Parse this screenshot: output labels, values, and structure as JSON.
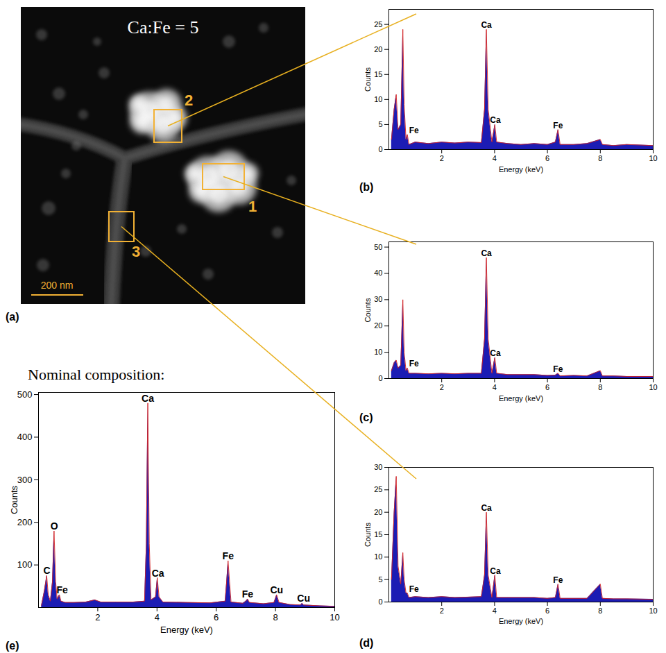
{
  "chart_data": [
    {
      "type": "area",
      "panel_label": "(b)",
      "xlabel": "Energy (keV)",
      "ylabel": "Counts",
      "color": "#1c1cb4",
      "xlim": [
        0,
        10
      ],
      "xticks": [
        2,
        4,
        6,
        8,
        10
      ],
      "ylim": [
        0,
        28
      ],
      "yticks": [
        0,
        5,
        10,
        15,
        20,
        25
      ],
      "x": [
        0.1,
        0.2,
        0.28,
        0.35,
        0.45,
        0.53,
        0.58,
        0.65,
        0.7,
        0.76,
        1.0,
        1.5,
        2.0,
        2.5,
        3.0,
        3.5,
        3.62,
        3.69,
        3.76,
        3.9,
        4.01,
        4.08,
        4.5,
        5.0,
        5.5,
        6.0,
        6.3,
        6.4,
        6.48,
        7.0,
        7.5,
        8.0,
        8.08,
        8.5,
        9.0,
        10
      ],
      "values": [
        2,
        8,
        11,
        4,
        5,
        24,
        9,
        2,
        3,
        1,
        1.5,
        1.2,
        1.5,
        1.3,
        1.5,
        1.4,
        8,
        24,
        8,
        1.5,
        5,
        1.5,
        1.2,
        1,
        1.2,
        1,
        1.5,
        4,
        1,
        1,
        1.2,
        2,
        1,
        0.8,
        1,
        0.8
      ],
      "annotations": [
        {
          "text": "Fe",
          "x": 0.95,
          "y": 3
        },
        {
          "text": "Ca",
          "x": 3.69,
          "y": 24
        },
        {
          "text": "Ca",
          "x": 4.03,
          "y": 5
        },
        {
          "text": "Fe",
          "x": 6.4,
          "y": 4
        }
      ]
    },
    {
      "type": "area",
      "panel_label": "(c)",
      "xlabel": "Energy (keV)",
      "ylabel": "Counts",
      "color": "#1c1cb4",
      "xlim": [
        0,
        10
      ],
      "xticks": [
        2,
        4,
        6,
        8,
        10
      ],
      "ylim": [
        0,
        52
      ],
      "yticks": [
        0,
        10,
        20,
        30,
        40,
        50
      ],
      "x": [
        0.1,
        0.2,
        0.28,
        0.35,
        0.45,
        0.53,
        0.58,
        0.65,
        0.7,
        0.76,
        1.0,
        1.5,
        2.0,
        2.5,
        3.0,
        3.5,
        3.62,
        3.69,
        3.76,
        3.9,
        4.01,
        4.08,
        4.5,
        5.0,
        5.5,
        6.0,
        6.3,
        6.4,
        6.48,
        7.0,
        7.5,
        8.0,
        8.08,
        8.5,
        9.0,
        10
      ],
      "values": [
        3,
        6,
        7,
        4,
        5,
        30,
        10,
        3,
        4,
        2,
        2,
        1.8,
        2,
        1.8,
        2,
        2,
        15,
        46,
        15,
        2,
        8,
        2,
        1.5,
        1.5,
        1.5,
        1.2,
        1.3,
        2,
        1,
        1.2,
        1,
        3,
        1,
        1,
        0.8,
        0.8
      ],
      "annotations": [
        {
          "text": "Fe",
          "x": 0.95,
          "y": 4
        },
        {
          "text": "Ca",
          "x": 3.69,
          "y": 46
        },
        {
          "text": "Ca",
          "x": 4.03,
          "y": 8
        },
        {
          "text": "Fe",
          "x": 6.4,
          "y": 2
        }
      ]
    },
    {
      "type": "area",
      "panel_label": "(d)",
      "xlabel": "Energy (keV)",
      "ylabel": "Counts",
      "color": "#1c1cb4",
      "xlim": [
        0,
        10
      ],
      "xticks": [
        2,
        4,
        6,
        8,
        10
      ],
      "ylim": [
        0,
        30
      ],
      "yticks": [
        0,
        5,
        10,
        15,
        20,
        25,
        30
      ],
      "x": [
        0.1,
        0.2,
        0.28,
        0.35,
        0.45,
        0.53,
        0.58,
        0.65,
        0.7,
        0.76,
        1.0,
        1.5,
        2.0,
        2.5,
        3.0,
        3.5,
        3.62,
        3.69,
        3.76,
        3.9,
        4.01,
        4.08,
        4.5,
        5.0,
        5.5,
        6.0,
        6.3,
        6.4,
        6.48,
        7.0,
        7.5,
        8.0,
        8.08,
        8.5,
        9.0,
        10
      ],
      "values": [
        5,
        20,
        28,
        8,
        4,
        11,
        5,
        2,
        2,
        1,
        1.2,
        1,
        1.2,
        1,
        1.1,
        1.2,
        6,
        20,
        6,
        1,
        6,
        1,
        1,
        1,
        1,
        0.8,
        1,
        4,
        0.8,
        0.8,
        0.8,
        4,
        0.8,
        0.7,
        0.7,
        0.6
      ],
      "annotations": [
        {
          "text": "Fe",
          "x": 0.95,
          "y": 2
        },
        {
          "text": "Ca",
          "x": 3.69,
          "y": 20
        },
        {
          "text": "Ca",
          "x": 4.03,
          "y": 6
        },
        {
          "text": "Fe",
          "x": 6.4,
          "y": 4
        }
      ]
    },
    {
      "type": "area",
      "panel_label": "(e)",
      "title": "Nominal composition:",
      "xlabel": "Energy (keV)",
      "ylabel": "Counts",
      "color": "#1c1cb4",
      "xlim": [
        0,
        10
      ],
      "xticks": [
        2,
        4,
        6,
        8,
        10
      ],
      "ylim": [
        0,
        505
      ],
      "yticks": [
        100,
        200,
        300,
        400,
        500
      ],
      "x": [
        0.1,
        0.2,
        0.277,
        0.33,
        0.4,
        0.47,
        0.525,
        0.58,
        0.63,
        0.705,
        0.76,
        0.9,
        1.2,
        1.6,
        1.9,
        2.1,
        2.6,
        3.2,
        3.58,
        3.64,
        3.69,
        3.74,
        3.8,
        3.95,
        4.01,
        4.07,
        4.2,
        5.0,
        5.8,
        6.3,
        6.35,
        6.4,
        6.45,
        6.5,
        6.9,
        7.0,
        7.06,
        7.12,
        7.6,
        7.95,
        8.04,
        8.12,
        8.5,
        8.85,
        8.9,
        8.95,
        9.5,
        10
      ],
      "values": [
        5,
        40,
        75,
        30,
        15,
        60,
        180,
        60,
        20,
        30,
        15,
        12,
        12,
        13,
        18,
        13,
        13,
        13,
        15,
        150,
        480,
        150,
        18,
        25,
        70,
        25,
        13,
        12,
        11,
        15,
        60,
        110,
        60,
        13,
        10,
        15,
        20,
        12,
        9,
        12,
        30,
        12,
        7,
        6,
        10,
        6,
        4,
        3
      ],
      "annotations": [
        {
          "text": "C",
          "x": 0.28,
          "y": 75
        },
        {
          "text": "O",
          "x": 0.53,
          "y": 180
        },
        {
          "text": "Fe",
          "x": 0.8,
          "y": 30
        },
        {
          "text": "Ca",
          "x": 3.69,
          "y": 480
        },
        {
          "text": "Ca",
          "x": 4.03,
          "y": 70
        },
        {
          "text": "Fe",
          "x": 6.4,
          "y": 110
        },
        {
          "text": "Fe",
          "x": 7.06,
          "y": 20
        },
        {
          "text": "Cu",
          "x": 8.04,
          "y": 30
        },
        {
          "text": "Cu",
          "x": 8.95,
          "y": 10
        }
      ]
    }
  ],
  "image": {
    "panel_label": "(a)",
    "title": "Ca:Fe = 5",
    "scale_bar": "200 nm",
    "regions": [
      {
        "label": "1",
        "panel_label": "(c)"
      },
      {
        "label": "2",
        "panel_label": "(b)"
      },
      {
        "label": "3",
        "panel_label": "(d)"
      }
    ]
  }
}
